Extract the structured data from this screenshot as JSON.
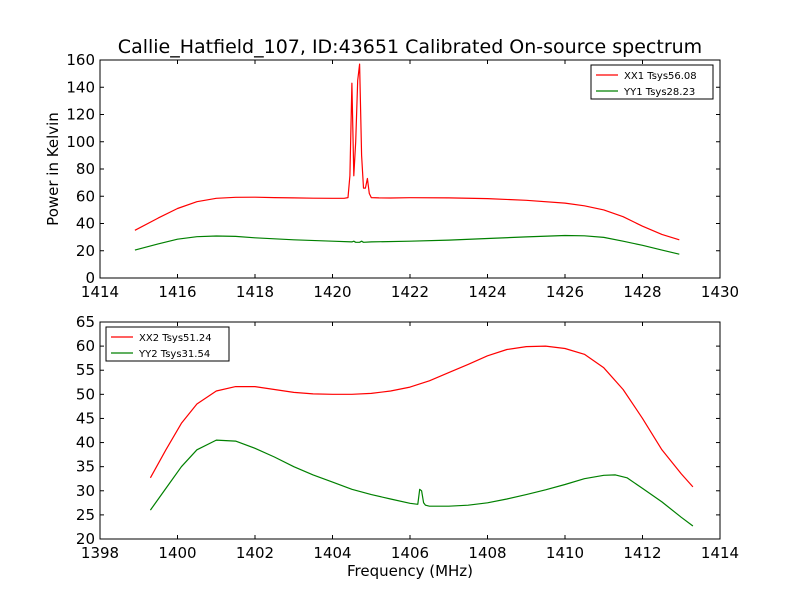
{
  "figure": {
    "title": "Callie_Hatfield_107, ID:43651 Calibrated On-source spectrum",
    "xlabel": "Frequency (MHz)",
    "ylabel": "Power in Kelvin"
  },
  "chart_data": [
    {
      "type": "line",
      "title": "Callie_Hatfield_107, ID:43651 Calibrated On-source spectrum",
      "xlabel": "",
      "ylabel": "Power in Kelvin",
      "xlim": [
        1414,
        1430
      ],
      "ylim": [
        0,
        160
      ],
      "xticks": [
        "1414",
        "1416",
        "1418",
        "1420",
        "1422",
        "1424",
        "1426",
        "1428",
        "1430"
      ],
      "yticks": [
        "0",
        "20",
        "40",
        "60",
        "80",
        "100",
        "120",
        "140",
        "160"
      ],
      "grid": false,
      "legend_position": "top-right",
      "series": [
        {
          "name": "XX1 Tsys56.08",
          "color": "#ff0000",
          "x": [
            1414.9,
            1415.5,
            1416,
            1416.5,
            1417,
            1417.5,
            1418,
            1418.5,
            1419,
            1419.5,
            1420,
            1420.3,
            1420.4,
            1420.45,
            1420.5,
            1420.55,
            1420.6,
            1420.65,
            1420.7,
            1420.75,
            1420.8,
            1420.85,
            1420.9,
            1420.95,
            1421,
            1421.2,
            1421.5,
            1422,
            1423,
            1424,
            1425,
            1426,
            1426.5,
            1427,
            1427.5,
            1428,
            1428.5,
            1428.95
          ],
          "y": [
            35,
            44,
            51,
            56,
            58.5,
            59.2,
            59.3,
            59,
            58.8,
            58.6,
            58.5,
            58.5,
            59,
            75,
            143,
            75,
            100,
            145,
            157,
            90,
            66,
            66,
            73,
            62,
            59,
            58.8,
            58.7,
            58.9,
            58.8,
            58.3,
            57,
            55,
            53,
            50,
            45,
            38,
            32,
            28
          ]
        },
        {
          "name": "YY1 Tsys28.23",
          "color": "#008000",
          "x": [
            1414.9,
            1415.5,
            1416,
            1416.5,
            1417,
            1417.5,
            1418,
            1419,
            1420,
            1420.5,
            1420.55,
            1420.6,
            1420.7,
            1420.75,
            1420.8,
            1421,
            1422,
            1423,
            1424,
            1425,
            1426,
            1426.5,
            1427,
            1427.5,
            1428,
            1428.5,
            1428.95
          ],
          "y": [
            20.5,
            25,
            28.5,
            30.3,
            30.8,
            30.5,
            29.5,
            28,
            27,
            26.5,
            27,
            26.2,
            26.2,
            27,
            26.2,
            26.5,
            27,
            27.8,
            29,
            30.2,
            31.2,
            31,
            29.8,
            27,
            24,
            20.5,
            17.5
          ]
        }
      ]
    },
    {
      "type": "line",
      "title": "",
      "xlabel": "Frequency (MHz)",
      "ylabel": "",
      "xlim": [
        1398,
        1414
      ],
      "ylim": [
        20,
        65
      ],
      "xticks": [
        "1398",
        "1400",
        "1402",
        "1404",
        "1406",
        "1408",
        "1410",
        "1412",
        "1414"
      ],
      "yticks": [
        "20",
        "25",
        "30",
        "35",
        "40",
        "45",
        "50",
        "55",
        "60",
        "65"
      ],
      "grid": false,
      "legend_position": "top-left",
      "series": [
        {
          "name": "XX2 Tsys51.24",
          "color": "#ff0000",
          "x": [
            1399.3,
            1399.7,
            1400.1,
            1400.5,
            1401,
            1401.5,
            1402,
            1402.5,
            1403,
            1403.5,
            1404,
            1404.5,
            1405,
            1405.5,
            1406,
            1406.5,
            1407,
            1407.5,
            1408,
            1408.5,
            1409,
            1409.5,
            1410,
            1410.5,
            1411,
            1411.5,
            1412,
            1412.5,
            1413,
            1413.3
          ],
          "y": [
            32.7,
            38.5,
            44,
            48,
            50.7,
            51.6,
            51.6,
            51,
            50.4,
            50.1,
            50,
            50,
            50.2,
            50.7,
            51.5,
            52.8,
            54.5,
            56.2,
            58,
            59.3,
            59.9,
            60,
            59.5,
            58.3,
            55.5,
            51,
            45,
            38.5,
            33.5,
            30.8
          ]
        },
        {
          "name": "YY2 Tsys31.54",
          "color": "#008000",
          "x": [
            1399.3,
            1399.7,
            1400.1,
            1400.5,
            1401,
            1401.5,
            1402,
            1402.5,
            1403,
            1403.5,
            1404,
            1404.5,
            1405,
            1405.5,
            1406,
            1406.2,
            1406.25,
            1406.3,
            1406.35,
            1406.4,
            1406.5,
            1407,
            1407.5,
            1408,
            1408.5,
            1409,
            1409.5,
            1410,
            1410.5,
            1411,
            1411.3,
            1411.6,
            1412,
            1412.5,
            1413,
            1413.3
          ],
          "y": [
            26,
            30.5,
            35,
            38.5,
            40.5,
            40.3,
            38.8,
            37,
            35,
            33.3,
            31.8,
            30.3,
            29.2,
            28.3,
            27.4,
            27.2,
            30.3,
            30,
            27.5,
            27,
            26.8,
            26.8,
            27,
            27.5,
            28.3,
            29.2,
            30.2,
            31.3,
            32.5,
            33.2,
            33.3,
            32.7,
            30.5,
            27.7,
            24.5,
            22.7
          ]
        }
      ]
    }
  ]
}
